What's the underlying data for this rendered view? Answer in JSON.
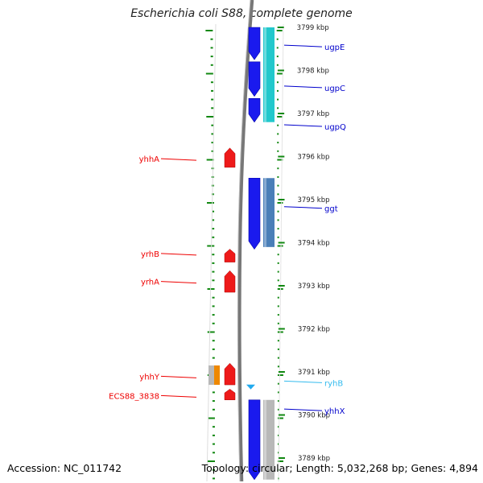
{
  "title": "Escherichia coli S88, complete genome",
  "footer": {
    "accession": "Accession: NC_011742",
    "topology": "Topology: circular; Length: 5,032,268 bp; Genes: 4,894"
  },
  "colors": {
    "forward_label": "#ee0000",
    "reverse_label": "#0000cc",
    "ncrna_label": "#33bbee",
    "tick": "#118811",
    "backbone": "#777777"
  },
  "scale_ticks": [
    {
      "kbp": 3799,
      "label": "3799 kbp"
    },
    {
      "kbp": 3798,
      "label": "3798 kbp"
    },
    {
      "kbp": 3797,
      "label": "3797 kbp"
    },
    {
      "kbp": 3796,
      "label": "3796 kbp"
    },
    {
      "kbp": 3795,
      "label": "3795 kbp"
    },
    {
      "kbp": 3794,
      "label": "3794 kbp"
    },
    {
      "kbp": 3793,
      "label": "3793 kbp"
    },
    {
      "kbp": 3792,
      "label": "3792 kbp"
    },
    {
      "kbp": 3791,
      "label": "3791 kbp"
    },
    {
      "kbp": 3790,
      "label": "3790 kbp"
    },
    {
      "kbp": 3789,
      "label": "3789 kbp"
    }
  ],
  "gene_labels": {
    "left": [
      {
        "name": "yhhA",
        "kbp": 3795.95
      },
      {
        "name": "yrhB",
        "kbp": 3793.75
      },
      {
        "name": "yrhA",
        "kbp": 3793.1
      },
      {
        "name": "yhhY",
        "kbp": 3790.9
      },
      {
        "name": "ECS88_3838",
        "kbp": 3790.45
      }
    ],
    "right": [
      {
        "name": "ugpE",
        "kbp": 3798.55,
        "kind": "cds"
      },
      {
        "name": "ugpC",
        "kbp": 3797.6,
        "kind": "cds"
      },
      {
        "name": "ugpQ",
        "kbp": 3796.7,
        "kind": "cds"
      },
      {
        "name": "ggt",
        "kbp": 3794.8,
        "kind": "cds"
      },
      {
        "name": "ryhB",
        "kbp": 3790.75,
        "kind": "ncrna"
      },
      {
        "name": "yhhX",
        "kbp": 3790.1,
        "kind": "cds"
      }
    ]
  },
  "features": [
    {
      "strand": "reverse",
      "type": "cds",
      "start": 3798.25,
      "end": 3799.0,
      "color": "#1a1aee"
    },
    {
      "strand": "reverse",
      "type": "cds",
      "start": 3797.4,
      "end": 3798.2,
      "color": "#1a1aee"
    },
    {
      "strand": "reverse",
      "type": "cds",
      "start": 3796.8,
      "end": 3797.35,
      "color": "#1a1aee"
    },
    {
      "strand": "reverse",
      "type": "cds",
      "start": 3793.85,
      "end": 3795.5,
      "color": "#1a1aee"
    },
    {
      "strand": "reverse",
      "type": "cds",
      "start": 3788.5,
      "end": 3790.35,
      "color": "#1a1aee"
    },
    {
      "strand": "reverse",
      "type": "cog",
      "start": 3796.8,
      "end": 3799.0,
      "color": "#22c8cc"
    },
    {
      "strand": "reverse",
      "type": "cog",
      "start": 3793.9,
      "end": 3795.5,
      "color": "#4a7fb8"
    },
    {
      "strand": "reverse",
      "type": "cog",
      "start": 3788.5,
      "end": 3790.35,
      "color": "#b8b8b8"
    },
    {
      "strand": "reverse",
      "type": "ncrna",
      "start": 3790.6,
      "end": 3790.7,
      "color": "#22aaee"
    },
    {
      "strand": "forward",
      "type": "cds",
      "start": 3795.75,
      "end": 3796.2,
      "color": "#ee1a1a"
    },
    {
      "strand": "forward",
      "type": "cds",
      "start": 3793.55,
      "end": 3793.85,
      "color": "#ee1a1a"
    },
    {
      "strand": "forward",
      "type": "cds",
      "start": 3792.85,
      "end": 3793.35,
      "color": "#ee1a1a"
    },
    {
      "strand": "forward",
      "type": "cds",
      "start": 3790.7,
      "end": 3791.2,
      "color": "#ee1a1a"
    },
    {
      "strand": "forward",
      "type": "cds",
      "start": 3790.35,
      "end": 3790.6,
      "color": "#ee1a1a"
    },
    {
      "strand": "forward",
      "type": "cog",
      "start": 3790.7,
      "end": 3791.15,
      "color": "#b8b8b8",
      "accent": "#ee8800"
    }
  ]
}
